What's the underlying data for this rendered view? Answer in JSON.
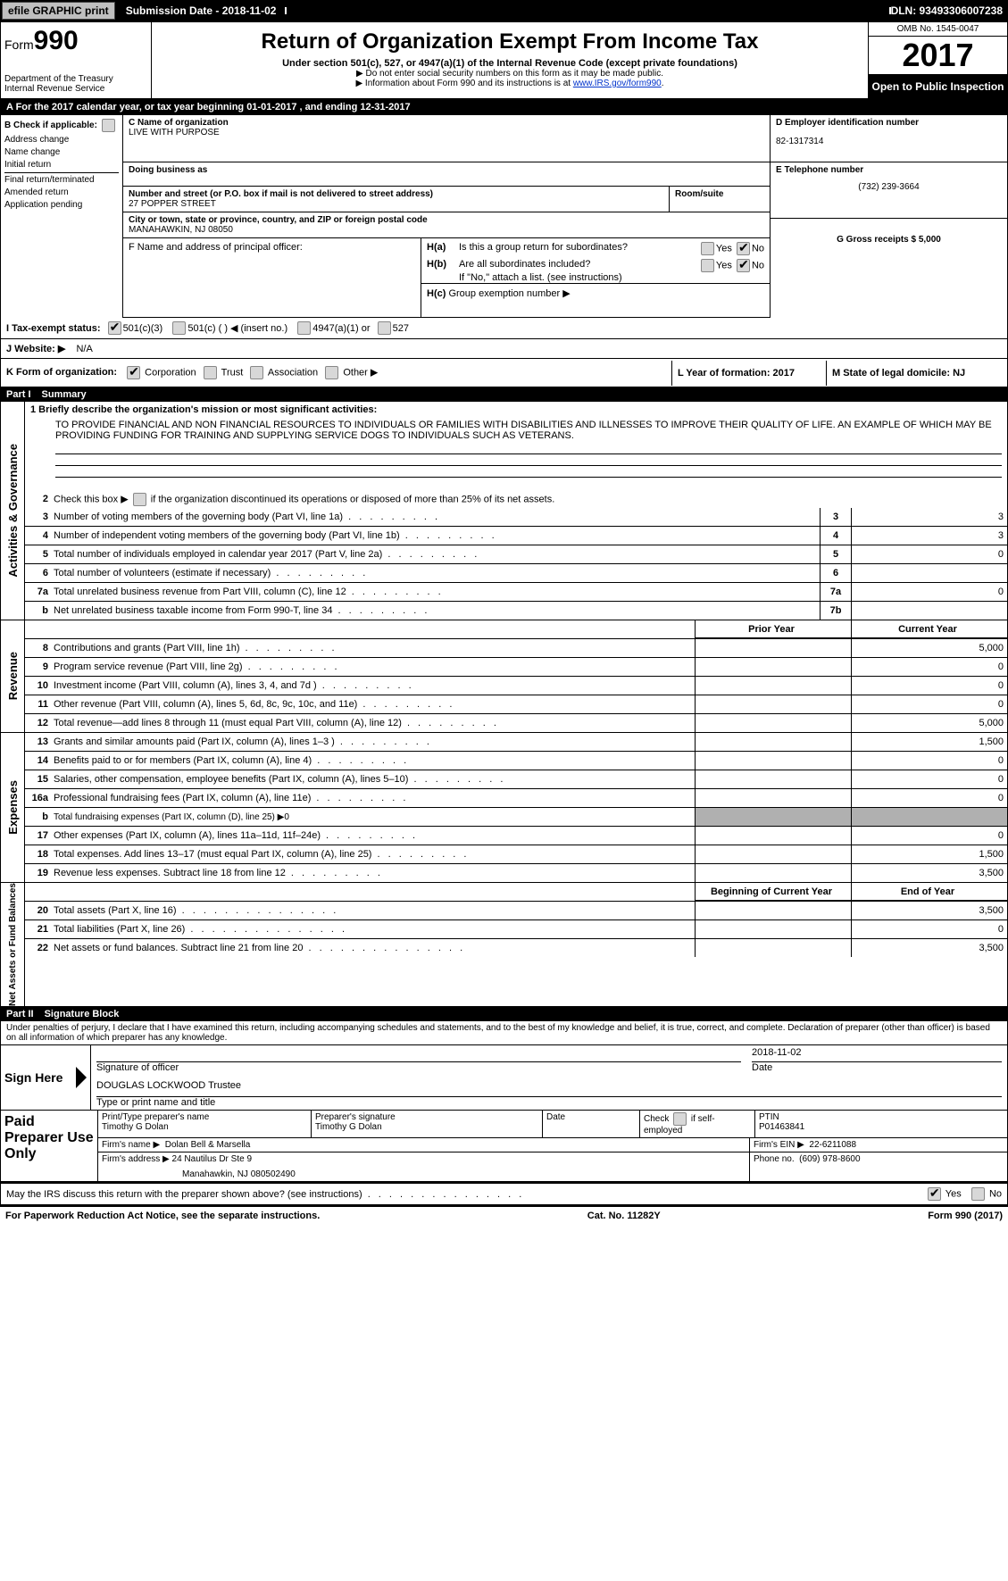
{
  "topbar": {
    "efile": "efile GRAPHIC print",
    "submission_label": "Submission Date - 2018-11-02",
    "dln": "DLN: 93493306007238"
  },
  "header": {
    "form_label": "Form",
    "form_number": "990",
    "dept": "Department of the Treasury",
    "irs": "Internal Revenue Service",
    "title": "Return of Organization Exempt From Income Tax",
    "subtitle": "Under section 501(c), 527, or 4947(a)(1) of the Internal Revenue Code (except private foundations)",
    "note1": "▶ Do not enter social security numbers on this form as it may be made public.",
    "note2_pre": "▶ Information about Form 990 and its instructions is at ",
    "note2_link": "www.IRS.gov/form990",
    "omb": "OMB No. 1545-0047",
    "year": "2017",
    "open": "Open to Public Inspection"
  },
  "rowA": "A  For the 2017 calendar year, or tax year beginning 01-01-2017       , and ending 12-31-2017",
  "boxB": {
    "label": "B Check if applicable:",
    "items": [
      "Address change",
      "Name change",
      "Initial return",
      "Final return/terminated",
      "Amended return",
      "Application pending"
    ]
  },
  "boxC": {
    "name_lbl": "C Name of organization",
    "name": "LIVE WITH PURPOSE",
    "dba_lbl": "Doing business as",
    "street_lbl": "Number and street (or P.O. box if mail is not delivered to street address)",
    "street": "27 POPPER STREET",
    "room_lbl": "Room/suite",
    "city_lbl": "City or town, state or province, country, and ZIP or foreign postal code",
    "city": "MANAHAWKIN, NJ  08050",
    "officer_lbl": "F  Name and address of principal officer:"
  },
  "boxD": {
    "ein_lbl": "D Employer identification number",
    "ein": "82-1317314",
    "tel_lbl": "E Telephone number",
    "tel": "(732) 239-3664",
    "gross_lbl": "G Gross receipts $ 5,000"
  },
  "boxH": {
    "a": "Is this a group return for subordinates?",
    "b": "Are all subordinates included?",
    "b_note": "If \"No,\" attach a list. (see instructions)",
    "c": "Group exemption number ▶",
    "ha": "H(a)",
    "hb": "H(b)",
    "hc": "H(c)",
    "yes": "Yes",
    "no": "No"
  },
  "rowI": {
    "lbl": "I  Tax-exempt status:",
    "o1": "501(c)(3)",
    "o2": "501(c) (  ) ◀ (insert no.)",
    "o3": "4947(a)(1) or",
    "o4": "527"
  },
  "rowJ": {
    "lbl": "J  Website: ▶",
    "val": "N/A"
  },
  "rowK": {
    "lbl": "K Form of organization:",
    "o1": "Corporation",
    "o2": "Trust",
    "o3": "Association",
    "o4": "Other ▶"
  },
  "rowL": {
    "lbl": "L Year of formation: 2017"
  },
  "rowM": {
    "lbl": "M State of legal domicile: NJ"
  },
  "part1": {
    "num": "Part I",
    "title": "Summary"
  },
  "mission": {
    "lbl": "1  Briefly describe the organization's mission or most significant activities:",
    "text": "TO PROVIDE FINANCIAL AND NON FINANCIAL RESOURCES TO INDIVIDUALS OR FAMILIES WITH DISABILITIES AND ILLNESSES TO IMPROVE THEIR QUALITY OF LIFE. AN EXAMPLE OF WHICH MAY BE PROVIDING FUNDING FOR TRAINING AND SUPPLYING SERVICE DOGS TO INDIVIDUALS SUCH AS VETERANS."
  },
  "governance": {
    "line2": "Check this box ▶       if the organization discontinued its operations or disposed of more than 25% of its net assets.",
    "lines": [
      {
        "n": "3",
        "d": "Number of voting members of the governing body (Part VI, line 1a)",
        "box": "3",
        "v": "3"
      },
      {
        "n": "4",
        "d": "Number of independent voting members of the governing body (Part VI, line 1b)",
        "box": "4",
        "v": "3"
      },
      {
        "n": "5",
        "d": "Total number of individuals employed in calendar year 2017 (Part V, line 2a)",
        "box": "5",
        "v": "0"
      },
      {
        "n": "6",
        "d": "Total number of volunteers (estimate if necessary)",
        "box": "6",
        "v": ""
      },
      {
        "n": "7a",
        "d": "Total unrelated business revenue from Part VIII, column (C), line 12",
        "box": "7a",
        "v": "0"
      },
      {
        "n": "b",
        "d": "Net unrelated business taxable income from Form 990-T, line 34",
        "box": "7b",
        "v": ""
      }
    ]
  },
  "cols": {
    "prior": "Prior Year",
    "current": "Current Year",
    "begin": "Beginning of Current Year",
    "end": "End of Year"
  },
  "revenue_label": "Revenue",
  "revenue": [
    {
      "n": "8",
      "d": "Contributions and grants (Part VIII, line 1h)",
      "p": "",
      "c": "5,000"
    },
    {
      "n": "9",
      "d": "Program service revenue (Part VIII, line 2g)",
      "p": "",
      "c": "0"
    },
    {
      "n": "10",
      "d": "Investment income (Part VIII, column (A), lines 3, 4, and 7d )",
      "p": "",
      "c": "0"
    },
    {
      "n": "11",
      "d": "Other revenue (Part VIII, column (A), lines 5, 6d, 8c, 9c, 10c, and 11e)",
      "p": "",
      "c": "0"
    },
    {
      "n": "12",
      "d": "Total revenue—add lines 8 through 11 (must equal Part VIII, column (A), line 12)",
      "p": "",
      "c": "5,000"
    }
  ],
  "expenses_label": "Expenses",
  "expenses": [
    {
      "n": "13",
      "d": "Grants and similar amounts paid (Part IX, column (A), lines 1–3 )",
      "p": "",
      "c": "1,500"
    },
    {
      "n": "14",
      "d": "Benefits paid to or for members (Part IX, column (A), line 4)",
      "p": "",
      "c": "0"
    },
    {
      "n": "15",
      "d": "Salaries, other compensation, employee benefits (Part IX, column (A), lines 5–10)",
      "p": "",
      "c": "0"
    },
    {
      "n": "16a",
      "d": "Professional fundraising fees (Part IX, column (A), line 11e)",
      "p": "",
      "c": "0"
    },
    {
      "n": "b",
      "d": "Total fundraising expenses (Part IX, column (D), line 25) ▶0",
      "p": "grey",
      "c": "grey"
    },
    {
      "n": "17",
      "d": "Other expenses (Part IX, column (A), lines 11a–11d, 11f–24e)",
      "p": "",
      "c": "0"
    },
    {
      "n": "18",
      "d": "Total expenses. Add lines 13–17 (must equal Part IX, column (A), line 25)",
      "p": "",
      "c": "1,500"
    },
    {
      "n": "19",
      "d": "Revenue less expenses. Subtract line 18 from line 12",
      "p": "",
      "c": "3,500"
    }
  ],
  "netassets_label": "Net Assets or Fund Balances",
  "netassets": [
    {
      "n": "20",
      "d": "Total assets (Part X, line 16)",
      "p": "",
      "c": "3,500"
    },
    {
      "n": "21",
      "d": "Total liabilities (Part X, line 26)",
      "p": "",
      "c": "0"
    },
    {
      "n": "22",
      "d": "Net assets or fund balances. Subtract line 21 from line 20",
      "p": "",
      "c": "3,500"
    }
  ],
  "part2": {
    "num": "Part II",
    "title": "Signature Block"
  },
  "penalty": "Under penalties of perjury, I declare that I have examined this return, including accompanying schedules and statements, and to the best of my knowledge and belief, it is true, correct, and complete. Declaration of preparer (other than officer) is based on all information of which preparer has any knowledge.",
  "sign": {
    "here": "Sign Here",
    "sig_lbl": "Signature of officer",
    "date_lbl": "Date",
    "date": "2018-11-02",
    "name": "DOUGLAS LOCKWOOD  Trustee",
    "name_lbl": "Type or print name and title"
  },
  "preparer": {
    "title": "Paid Preparer Use Only",
    "print_lbl": "Print/Type preparer's name",
    "print": "Timothy G Dolan",
    "sig_lbl": "Preparer's signature",
    "sig": "Timothy G Dolan",
    "date_lbl": "Date",
    "check_lbl": "Check         if self-employed",
    "ptin_lbl": "PTIN",
    "ptin": "P01463841",
    "firm_name_lbl": "Firm's name    ▶",
    "firm_name": "Dolan Bell & Marsella",
    "firm_ein_lbl": "Firm's EIN ▶",
    "firm_ein": "22-6211088",
    "firm_addr_lbl": "Firm's address ▶",
    "firm_addr": "24 Nautilus Dr Ste 9",
    "firm_city": "Manahawkin, NJ  080502490",
    "phone_lbl": "Phone no.",
    "phone": "(609) 978-8600"
  },
  "discuss": {
    "text": "May the IRS discuss this return with the preparer shown above? (see instructions)",
    "yes": "Yes",
    "no": "No"
  },
  "footer": {
    "left": "For Paperwork Reduction Act Notice, see the separate instructions.",
    "mid": "Cat. No. 11282Y",
    "right_pre": "Form ",
    "right_bold": "990",
    "right_post": " (2017)"
  },
  "gov_label": "Activities & Governance"
}
